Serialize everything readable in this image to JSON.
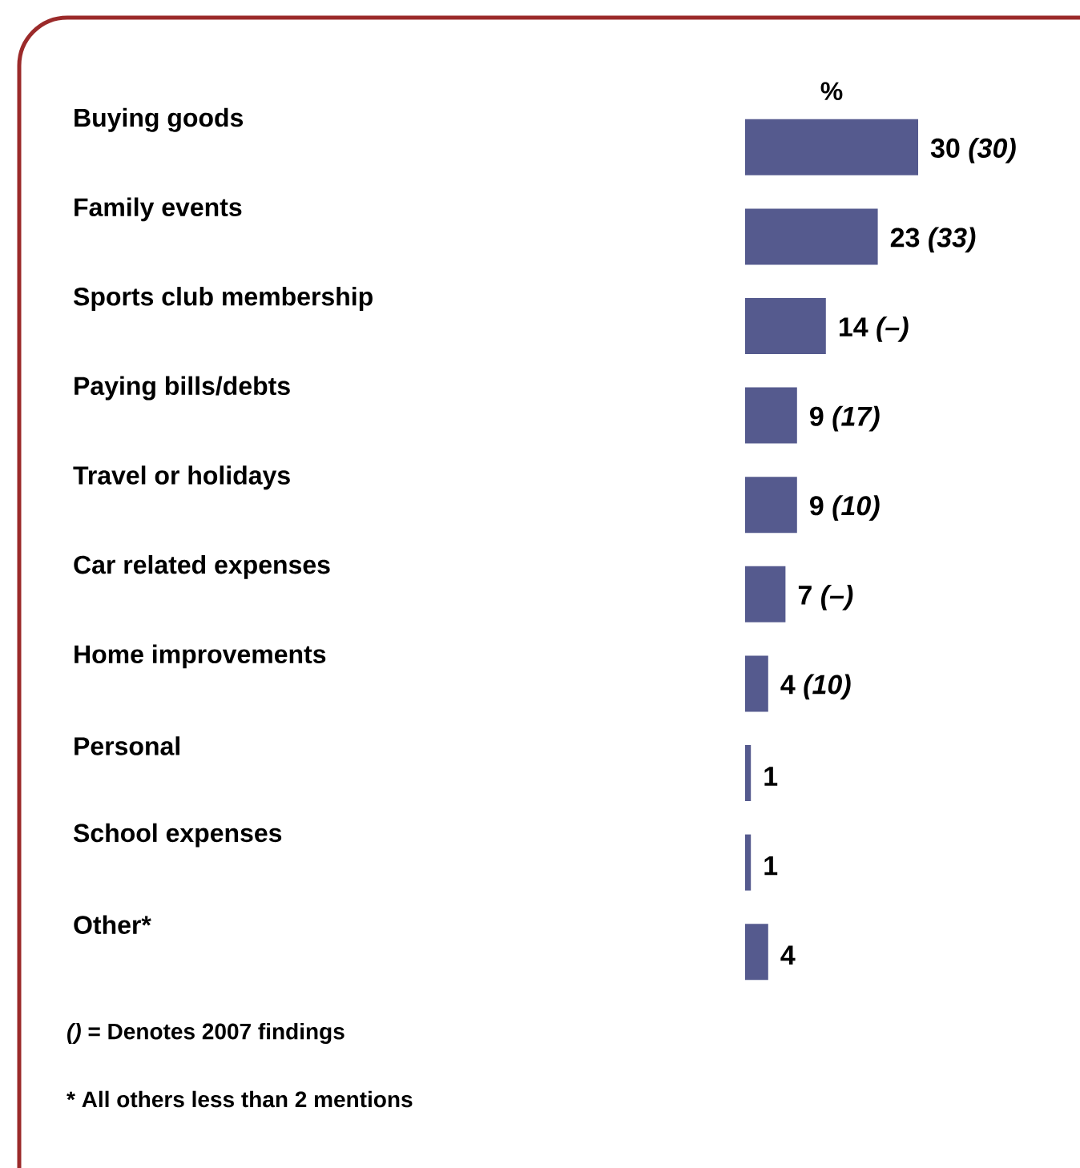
{
  "chart_data": {
    "type": "bar",
    "orientation": "horizontal",
    "xlabel": "%",
    "categories": [
      "Buying goods",
      "Family events",
      "Sports club membership",
      "Paying bills/debts",
      "Travel or holidays",
      "Car related expenses",
      "Home improvements",
      "Personal",
      "School expenses",
      "Other*"
    ],
    "values": [
      30,
      23,
      14,
      9,
      9,
      7,
      4,
      1,
      1,
      4
    ],
    "color": "#555a8e",
    "value_labels": [
      "30 *(30)*",
      "23 *(33)*",
      "14 *(–)*",
      "9 *(17)*",
      "9 *(10)*",
      "7 *(–)*",
      "4 *(10)*",
      "1",
      "1",
      "4"
    ],
    "annotations": [
      "*()* = Denotes 2007 findings",
      "* All others less than 2 mentions"
    ],
    "tick_labels": "y"
  }
}
